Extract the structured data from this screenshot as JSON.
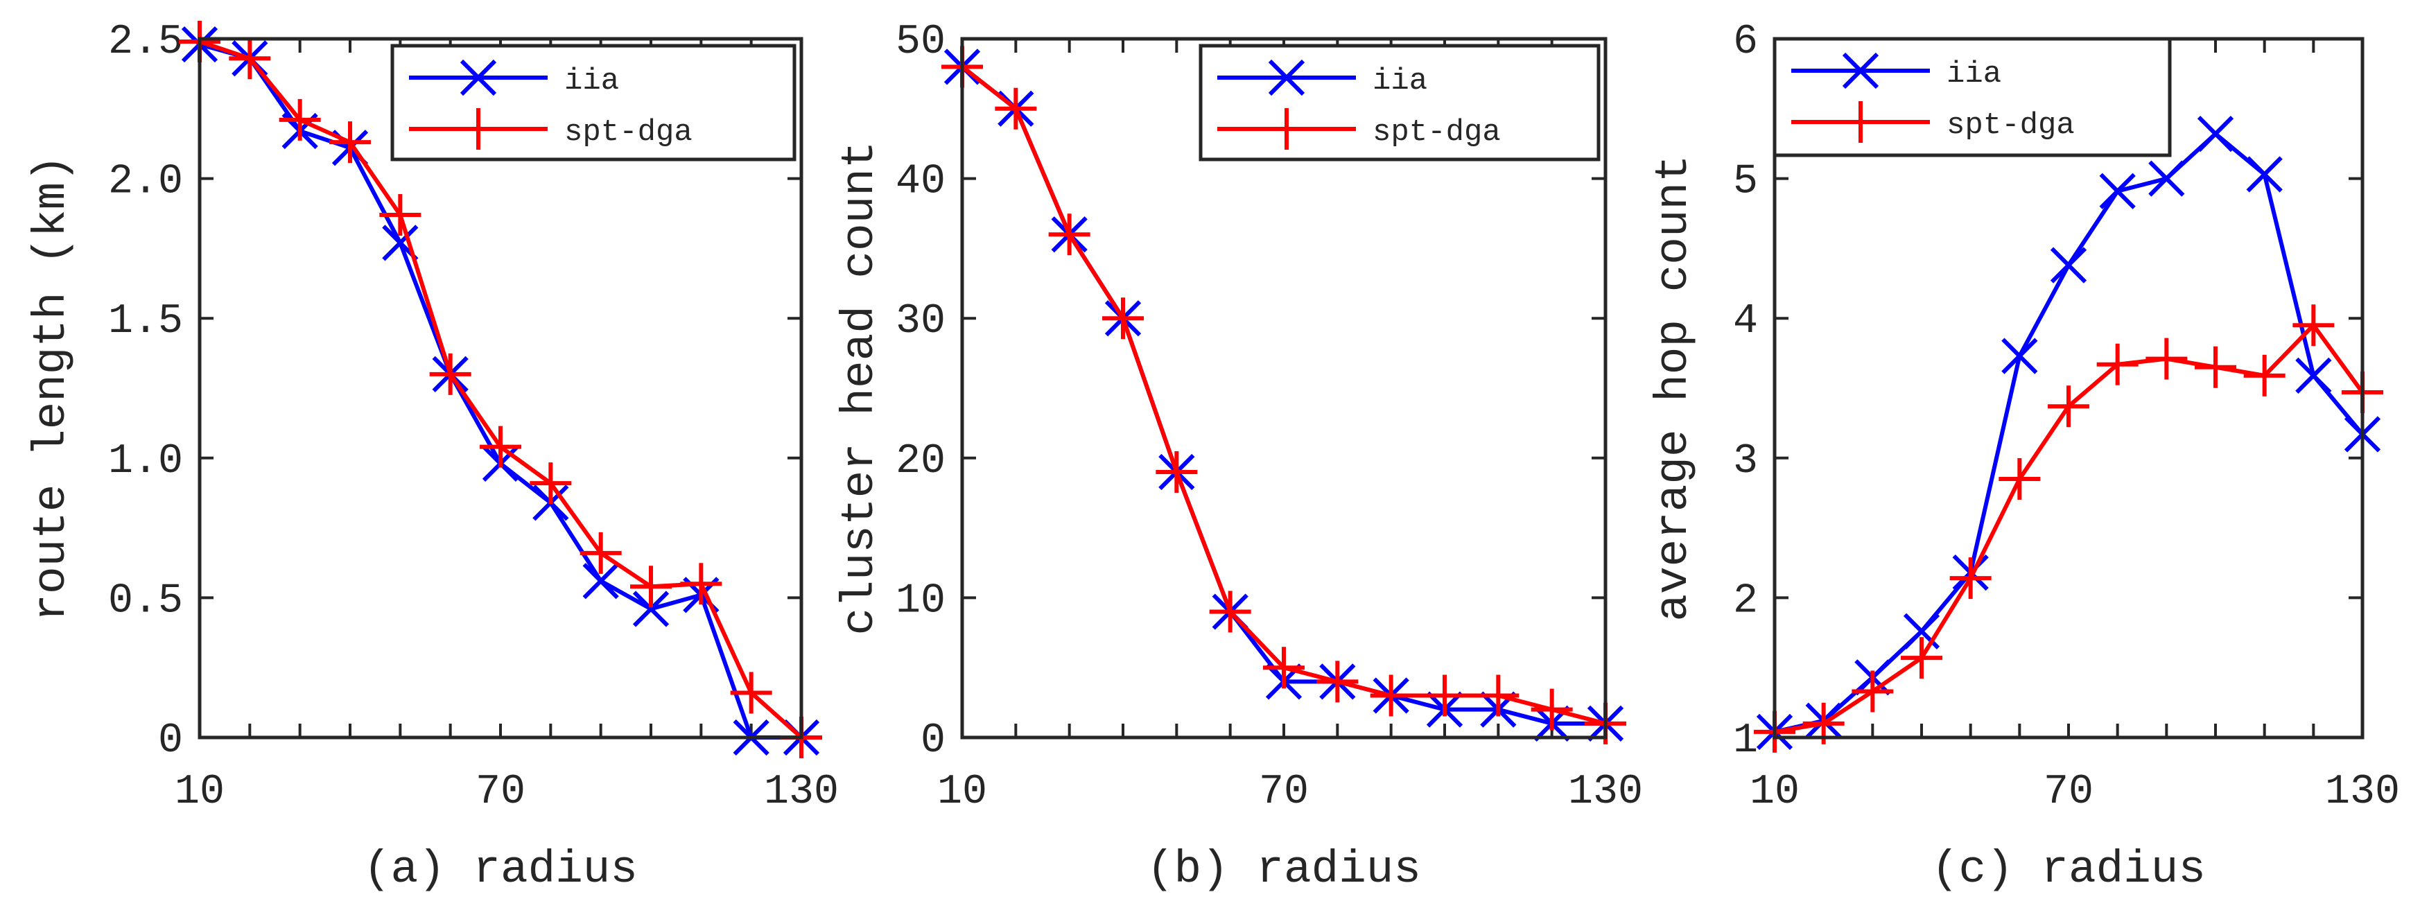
{
  "chart_data": [
    {
      "type": "line",
      "panel": "a",
      "xlabel": "(a) radius",
      "ylabel": "route length (km)",
      "xlim": [
        10,
        130
      ],
      "ylim": [
        0,
        2.5
      ],
      "xticks": [
        10,
        70,
        130
      ],
      "xtick_labels": [
        "10",
        "70",
        "130"
      ],
      "yticks": [
        0,
        0.5,
        1.0,
        1.5,
        2.0,
        2.5
      ],
      "ytick_labels": [
        "0",
        "0.5",
        "1.0",
        "1.5",
        "2.0",
        "2.5"
      ],
      "legend_position": "top-right",
      "x": [
        10,
        20,
        30,
        40,
        50,
        60,
        70,
        80,
        90,
        100,
        110,
        120,
        130
      ],
      "series": [
        {
          "name": "iia",
          "color": "#0000ff",
          "marker": "x",
          "values": [
            2.48,
            2.43,
            2.17,
            2.11,
            1.77,
            1.3,
            0.98,
            0.84,
            0.56,
            0.46,
            0.51,
            0.0,
            0.0
          ]
        },
        {
          "name": "spt-dga",
          "color": "#ff0000",
          "marker": "+",
          "values": [
            2.49,
            2.43,
            2.21,
            2.13,
            1.87,
            1.3,
            1.04,
            0.91,
            0.66,
            0.54,
            0.55,
            0.16,
            0.0
          ]
        }
      ]
    },
    {
      "type": "line",
      "panel": "b",
      "xlabel": "(b) radius",
      "ylabel": "cluster head count",
      "xlim": [
        10,
        130
      ],
      "ylim": [
        0,
        50
      ],
      "xticks": [
        10,
        70,
        130
      ],
      "xtick_labels": [
        "10",
        "70",
        "130"
      ],
      "yticks": [
        0,
        10,
        20,
        30,
        40,
        50
      ],
      "ytick_labels": [
        "0",
        "10",
        "20",
        "30",
        "40",
        "50"
      ],
      "legend_position": "top-right",
      "x": [
        10,
        20,
        30,
        40,
        50,
        60,
        70,
        80,
        90,
        100,
        110,
        120,
        130
      ],
      "series": [
        {
          "name": "iia",
          "color": "#0000ff",
          "marker": "x",
          "values": [
            48,
            45,
            36,
            30,
            19,
            9,
            4,
            4,
            3,
            2,
            2,
            1,
            1
          ]
        },
        {
          "name": "spt-dga",
          "color": "#ff0000",
          "marker": "+",
          "values": [
            48,
            45,
            36,
            30,
            19,
            9,
            5,
            4,
            3,
            3,
            3,
            2,
            1
          ]
        }
      ]
    },
    {
      "type": "line",
      "panel": "c",
      "xlabel": "(c) radius",
      "ylabel": "average hop count",
      "xlim": [
        10,
        130
      ],
      "ylim": [
        1,
        6
      ],
      "xticks": [
        10,
        70,
        130
      ],
      "xtick_labels": [
        "10",
        "70",
        "130"
      ],
      "yticks": [
        1,
        2,
        3,
        4,
        5,
        6
      ],
      "ytick_labels": [
        "1",
        "2",
        "3",
        "4",
        "5",
        "6"
      ],
      "legend_position": "top-left",
      "x": [
        10,
        20,
        30,
        40,
        50,
        60,
        70,
        80,
        90,
        100,
        110,
        120,
        130
      ],
      "series": [
        {
          "name": "iia",
          "color": "#0000ff",
          "marker": "x",
          "values": [
            1.04,
            1.12,
            1.43,
            1.76,
            2.18,
            3.73,
            4.38,
            4.91,
            5.0,
            5.32,
            5.03,
            3.59,
            3.17
          ]
        },
        {
          "name": "spt-dga",
          "color": "#ff0000",
          "marker": "+",
          "values": [
            1.04,
            1.1,
            1.33,
            1.57,
            2.14,
            2.85,
            3.37,
            3.67,
            3.71,
            3.65,
            3.59,
            3.95,
            3.47
          ]
        }
      ]
    }
  ]
}
